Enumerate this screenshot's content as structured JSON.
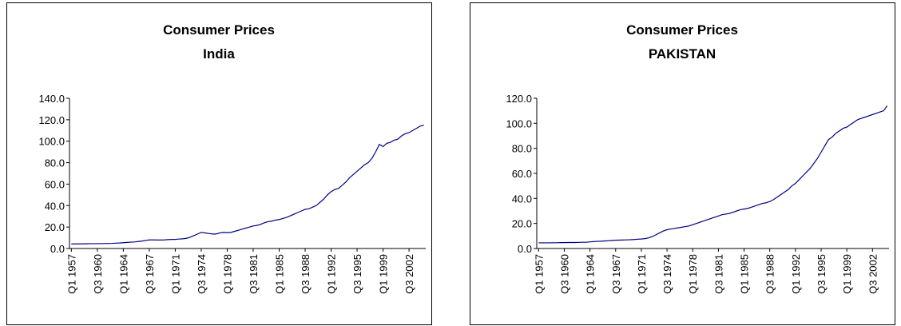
{
  "chart_data": [
    {
      "type": "line",
      "title": "Consumer Prices",
      "subtitle": "India",
      "categories": [
        "Q1 1957",
        null,
        null,
        null,
        null,
        null,
        null,
        "Q3 1960",
        null,
        null,
        null,
        null,
        null,
        null,
        "Q1 1964",
        null,
        null,
        null,
        null,
        null,
        null,
        "Q3 1967",
        null,
        null,
        null,
        null,
        null,
        null,
        "Q1 1971",
        null,
        null,
        null,
        null,
        null,
        null,
        "Q3 1974",
        null,
        null,
        null,
        null,
        null,
        null,
        "Q1 1978",
        null,
        null,
        null,
        null,
        null,
        null,
        "Q3 1981",
        null,
        null,
        null,
        null,
        null,
        null,
        "Q1 1985",
        null,
        null,
        null,
        null,
        null,
        null,
        "Q3 1988",
        null,
        null,
        null,
        null,
        null,
        null,
        "Q1 1992",
        null,
        null,
        null,
        null,
        null,
        null,
        "Q3 1995",
        null,
        null,
        null,
        null,
        null,
        null,
        "Q1 1999",
        null,
        null,
        null,
        null,
        null,
        null,
        "Q3 2002",
        null,
        null,
        null,
        null
      ],
      "series": [
        {
          "color": "#000080",
          "values": [
            4.2,
            4.3,
            4.3,
            4.4,
            4.4,
            4.5,
            4.5,
            4.5,
            4.6,
            4.6,
            4.7,
            4.8,
            5.0,
            5.1,
            5.4,
            5.7,
            5.9,
            6.1,
            6.5,
            6.9,
            7.5,
            8.0,
            8.0,
            7.9,
            7.9,
            8.0,
            8.3,
            8.5,
            8.5,
            8.8,
            9.0,
            9.5,
            10.5,
            12.0,
            13.5,
            15.0,
            14.5,
            14.0,
            13.5,
            13.5,
            14.5,
            15.0,
            14.8,
            15.0,
            16.0,
            17.0,
            18.0,
            19.0,
            20.0,
            21.0,
            21.5,
            22.5,
            24.0,
            25.0,
            25.5,
            26.5,
            27.0,
            28.0,
            29.0,
            30.5,
            32.0,
            33.5,
            35.0,
            36.5,
            37.0,
            38.5,
            40.0,
            43.0,
            46.0,
            50.0,
            53.0,
            55.0,
            56.0,
            59.0,
            62.0,
            66.0,
            69.0,
            72.0,
            75.0,
            78.0,
            80.0,
            84.0,
            90.0,
            97.0,
            95.0,
            98.0,
            99.0,
            101.0,
            102.0,
            105.0,
            107.0,
            108.0,
            110.0,
            112.0,
            114.0,
            115.0
          ]
        }
      ],
      "ylim": [
        0,
        140
      ],
      "yticks": [
        {
          "value": 0,
          "label": "0.0"
        },
        {
          "value": 20,
          "label": "20.0"
        },
        {
          "value": 40,
          "label": "40.0"
        },
        {
          "value": 60,
          "label": "60.0"
        },
        {
          "value": 80,
          "label": "80.0"
        },
        {
          "value": 100,
          "label": "100.0"
        },
        {
          "value": 120,
          "label": "120.0"
        },
        {
          "value": 140,
          "label": "140.0"
        }
      ],
      "grid": false
    },
    {
      "type": "line",
      "title": "Consumer Prices",
      "subtitle": "PAKISTAN",
      "categories": [
        "Q1 1957",
        null,
        null,
        null,
        null,
        null,
        null,
        "Q3 1960",
        null,
        null,
        null,
        null,
        null,
        null,
        "Q1 1964",
        null,
        null,
        null,
        null,
        null,
        null,
        "Q3 1967",
        null,
        null,
        null,
        null,
        null,
        null,
        "Q1 1971",
        null,
        null,
        null,
        null,
        null,
        null,
        "Q3 1974",
        null,
        null,
        null,
        null,
        null,
        null,
        "Q1 1978",
        null,
        null,
        null,
        null,
        null,
        null,
        "Q3 1981",
        null,
        null,
        null,
        null,
        null,
        null,
        "Q1 1985",
        null,
        null,
        null,
        null,
        null,
        null,
        "Q3 1988",
        null,
        null,
        null,
        null,
        null,
        null,
        "Q1 1992",
        null,
        null,
        null,
        null,
        null,
        null,
        "Q3 1995",
        null,
        null,
        null,
        null,
        null,
        null,
        "Q1 1999",
        null,
        null,
        null,
        null,
        null,
        null,
        "Q3 2002",
        null,
        null,
        null,
        null
      ],
      "series": [
        {
          "color": "#000080",
          "values": [
            4.5,
            4.5,
            4.5,
            4.5,
            4.6,
            4.6,
            4.7,
            4.7,
            4.8,
            4.8,
            4.8,
            4.9,
            5.0,
            5.0,
            5.3,
            5.5,
            5.7,
            5.8,
            6.0,
            6.2,
            6.4,
            6.6,
            6.7,
            6.8,
            6.9,
            7.0,
            7.2,
            7.4,
            7.6,
            7.9,
            8.5,
            9.5,
            11.0,
            12.5,
            14.0,
            15.0,
            15.5,
            16.0,
            16.5,
            17.0,
            17.5,
            18.0,
            19.0,
            20.0,
            21.0,
            22.0,
            23.0,
            24.0,
            25.0,
            26.0,
            27.0,
            27.5,
            28.0,
            29.0,
            30.0,
            31.0,
            31.5,
            32.0,
            33.0,
            34.0,
            35.0,
            36.0,
            36.5,
            37.5,
            39.0,
            41.0,
            43.0,
            45.0,
            47.0,
            50.0,
            52.0,
            55.0,
            58.0,
            61.0,
            64.0,
            68.0,
            72.0,
            77.0,
            82.0,
            87.0,
            89.0,
            92.0,
            94.0,
            96.0,
            97.0,
            99.0,
            101.0,
            103.0,
            104.0,
            105.0,
            106.0,
            107.0,
            108.0,
            109.0,
            110.0,
            114.0
          ]
        }
      ],
      "ylim": [
        0,
        120
      ],
      "yticks": [
        {
          "value": 0,
          "label": "0.0"
        },
        {
          "value": 20,
          "label": "20.0"
        },
        {
          "value": 40,
          "label": "40.0"
        },
        {
          "value": 60,
          "label": "60.0"
        },
        {
          "value": 80,
          "label": "80.0"
        },
        {
          "value": 100,
          "label": "100.0"
        },
        {
          "value": 120,
          "label": "120.0"
        }
      ],
      "grid": false
    }
  ]
}
